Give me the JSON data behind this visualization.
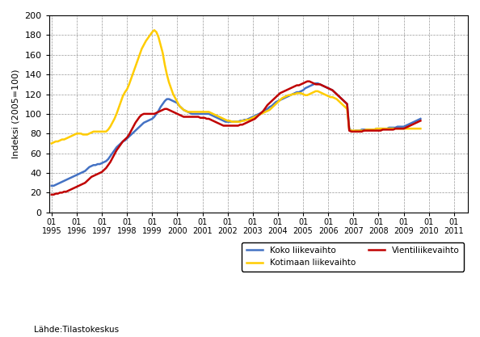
{
  "title": "",
  "ylabel": "Indeksi (2005=100)",
  "xlabel": "",
  "source_label": "Lähde:Tilastokeskus",
  "ylim": [
    0,
    200
  ],
  "yticks": [
    0,
    20,
    40,
    60,
    80,
    100,
    120,
    140,
    160,
    180,
    200
  ],
  "background_color": "#ffffff",
  "grid_color": "#999999",
  "line_color_blue": "#4472c4",
  "line_color_yellow": "#ffcc00",
  "line_color_red": "#c00000",
  "legend_labels": [
    "Koko liikevaihto",
    "Kotimaan liikevaihto",
    "Vientiliikevaihto"
  ],
  "koko_liikevaihto": [
    27,
    27,
    28,
    29,
    30,
    31,
    32,
    33,
    34,
    35,
    36,
    37,
    38,
    39,
    40,
    41,
    42,
    44,
    46,
    47,
    48,
    48,
    49,
    49,
    50,
    51,
    52,
    54,
    57,
    60,
    63,
    66,
    68,
    70,
    72,
    73,
    75,
    77,
    79,
    81,
    83,
    85,
    87,
    89,
    91,
    92,
    93,
    94,
    95,
    97,
    100,
    103,
    107,
    110,
    113,
    115,
    115,
    114,
    113,
    112,
    111,
    108,
    106,
    104,
    103,
    102,
    101,
    100,
    100,
    100,
    100,
    100,
    100,
    100,
    100,
    100,
    99,
    98,
    97,
    96,
    95,
    94,
    93,
    92,
    92,
    92,
    92,
    92,
    92,
    92,
    93,
    93,
    94,
    94,
    95,
    96,
    97,
    98,
    99,
    100,
    101,
    102,
    104,
    105,
    107,
    108,
    110,
    112,
    113,
    114,
    115,
    116,
    117,
    118,
    119,
    120,
    121,
    122,
    122,
    123,
    124,
    126,
    127,
    128,
    129,
    130,
    131,
    131,
    130,
    129,
    128,
    127,
    126,
    125,
    124,
    122,
    120,
    118,
    116,
    114,
    112,
    110,
    85,
    83,
    82,
    83,
    83,
    83,
    84,
    84,
    84,
    84,
    84,
    84,
    84,
    85,
    85,
    85,
    85,
    85,
    85,
    86,
    86,
    86,
    86,
    87,
    87,
    87,
    87,
    88,
    89,
    90,
    91,
    92,
    93,
    94,
    95
  ],
  "kotimaan_liikevaihto": [
    70,
    71,
    72,
    72,
    73,
    74,
    74,
    75,
    76,
    77,
    78,
    79,
    80,
    80,
    80,
    79,
    79,
    79,
    80,
    81,
    82,
    82,
    82,
    82,
    82,
    82,
    82,
    84,
    87,
    91,
    95,
    100,
    106,
    112,
    118,
    122,
    125,
    130,
    136,
    142,
    148,
    154,
    160,
    166,
    170,
    174,
    177,
    180,
    183,
    185,
    183,
    178,
    170,
    162,
    150,
    140,
    132,
    126,
    120,
    116,
    112,
    108,
    106,
    104,
    103,
    102,
    102,
    102,
    102,
    102,
    102,
    102,
    102,
    102,
    102,
    102,
    101,
    100,
    99,
    98,
    97,
    96,
    95,
    94,
    93,
    93,
    92,
    92,
    92,
    92,
    92,
    93,
    93,
    94,
    94,
    95,
    96,
    97,
    98,
    99,
    100,
    101,
    102,
    103,
    104,
    106,
    108,
    110,
    112,
    114,
    116,
    117,
    118,
    119,
    119,
    120,
    120,
    121,
    121,
    121,
    120,
    119,
    119,
    120,
    121,
    122,
    123,
    123,
    122,
    121,
    120,
    119,
    118,
    117,
    117,
    116,
    115,
    113,
    111,
    109,
    107,
    105,
    84,
    83,
    83,
    83,
    83,
    83,
    83,
    83,
    84,
    84,
    84,
    84,
    84,
    85,
    85,
    85,
    85,
    85,
    85,
    85,
    85,
    85,
    85,
    85,
    85,
    85,
    85,
    85,
    85,
    85,
    85,
    85,
    85,
    85,
    85
  ],
  "vienti_liikevaihto": [
    18,
    18,
    19,
    19,
    20,
    20,
    21,
    21,
    22,
    23,
    24,
    25,
    26,
    27,
    28,
    29,
    30,
    32,
    34,
    36,
    37,
    38,
    39,
    40,
    41,
    43,
    45,
    48,
    51,
    55,
    59,
    63,
    66,
    69,
    72,
    74,
    76,
    79,
    83,
    87,
    91,
    94,
    97,
    99,
    100,
    100,
    100,
    100,
    100,
    100,
    101,
    102,
    103,
    104,
    105,
    105,
    104,
    103,
    102,
    101,
    100,
    99,
    98,
    97,
    97,
    97,
    97,
    97,
    97,
    97,
    97,
    96,
    96,
    96,
    95,
    95,
    94,
    93,
    92,
    91,
    90,
    89,
    88,
    88,
    88,
    88,
    88,
    88,
    88,
    88,
    89,
    89,
    90,
    91,
    92,
    93,
    94,
    95,
    97,
    99,
    101,
    103,
    106,
    109,
    111,
    113,
    115,
    117,
    119,
    121,
    122,
    123,
    124,
    125,
    126,
    127,
    128,
    129,
    129,
    130,
    131,
    132,
    133,
    133,
    132,
    131,
    130,
    130,
    130,
    129,
    128,
    127,
    126,
    125,
    124,
    122,
    120,
    118,
    116,
    114,
    112,
    110,
    83,
    82,
    82,
    82,
    82,
    82,
    82,
    83,
    83,
    83,
    83,
    83,
    83,
    83,
    83,
    83,
    84,
    84,
    84,
    84,
    84,
    84,
    85,
    85,
    85,
    85,
    85,
    86,
    87,
    88,
    89,
    90,
    91,
    92,
    93
  ]
}
